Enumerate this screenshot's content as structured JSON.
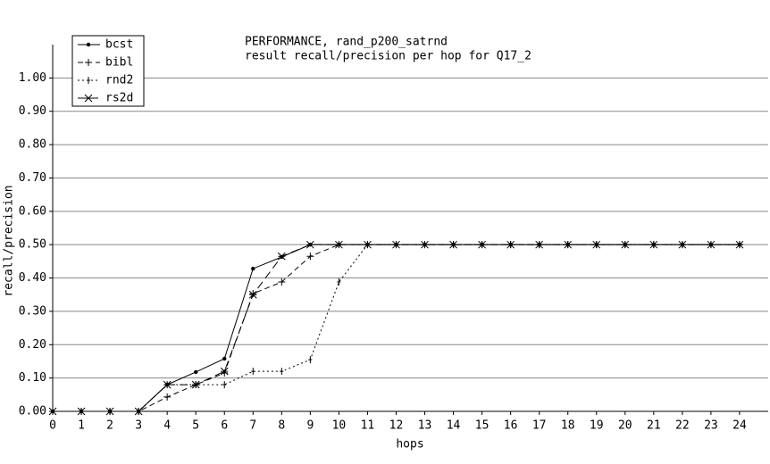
{
  "chart_data": {
    "type": "line",
    "title": "PERFORMANCE, rand_p200_satrnd",
    "subtitle": "result recall/precision per hop for Q17_2",
    "x_label": "hops",
    "y_label": "recall/precision",
    "x": [
      0,
      1,
      2,
      3,
      4,
      5,
      6,
      7,
      8,
      9,
      10,
      11,
      12,
      13,
      14,
      15,
      16,
      17,
      18,
      19,
      20,
      21,
      22,
      23,
      24
    ],
    "xlim": [
      0,
      25
    ],
    "xticks": [
      0,
      1,
      2,
      3,
      4,
      5,
      6,
      7,
      8,
      9,
      10,
      11,
      12,
      13,
      14,
      15,
      16,
      17,
      18,
      19,
      20,
      21,
      22,
      23,
      24
    ],
    "ylim": [
      0,
      1.1
    ],
    "yticks": [
      {
        "value": 0,
        "label": "0.00"
      },
      {
        "value": 0.1,
        "label": "0.10"
      },
      {
        "value": 0.2,
        "label": "0.20"
      },
      {
        "value": 0.3,
        "label": "0.30"
      },
      {
        "value": 0.4,
        "label": "0.40"
      },
      {
        "value": 0.5,
        "label": "0.50"
      },
      {
        "value": 0.6,
        "label": "0.60"
      },
      {
        "value": 0.7,
        "label": "0.70"
      },
      {
        "value": 0.8,
        "label": "0.80"
      },
      {
        "value": 0.9,
        "label": "0.90"
      },
      {
        "value": 1.0,
        "label": "1.00"
      }
    ],
    "grid": true,
    "legend": "upper left",
    "series": [
      {
        "name": "bcst",
        "color": "#000000",
        "line_style": "solid",
        "marker": "dot",
        "values": [
          0,
          0,
          0,
          0,
          0.08,
          0.118,
          0.158,
          0.428,
          0.463,
          0.5,
          0.5,
          0.5,
          0.5,
          0.5,
          0.5,
          0.5,
          0.5,
          0.5,
          0.5,
          0.5,
          0.5,
          0.5,
          0.5,
          0.5,
          0.5
        ]
      },
      {
        "name": "bibl",
        "color": "#000000",
        "line_style": "dashed",
        "marker": "plus",
        "values": [
          0,
          0,
          0,
          0,
          0.043,
          0.08,
          0.115,
          0.353,
          0.388,
          0.465,
          0.5,
          0.5,
          0.5,
          0.5,
          0.5,
          0.5,
          0.5,
          0.5,
          0.5,
          0.5,
          0.5,
          0.5,
          0.5,
          0.5,
          0.5
        ]
      },
      {
        "name": "rnd2",
        "color": "#000000",
        "line_style": "dotted",
        "marker": "tick",
        "values": [
          0,
          0,
          0,
          0,
          0.08,
          0.08,
          0.08,
          0.12,
          0.12,
          0.155,
          0.388,
          0.5,
          0.5,
          0.5,
          0.5,
          0.5,
          0.5,
          0.5,
          0.5,
          0.5,
          0.5,
          0.5,
          0.5,
          0.5,
          0.5
        ]
      },
      {
        "name": "rs2d",
        "color": "#000000",
        "line_style": "longdash",
        "marker": "star",
        "values": [
          0,
          0,
          0,
          0,
          0.08,
          0.08,
          0.12,
          0.35,
          0.465,
          0.5,
          0.5,
          0.5,
          0.5,
          0.5,
          0.5,
          0.5,
          0.5,
          0.5,
          0.5,
          0.5,
          0.5,
          0.5,
          0.5,
          0.5,
          0.5
        ]
      }
    ]
  }
}
